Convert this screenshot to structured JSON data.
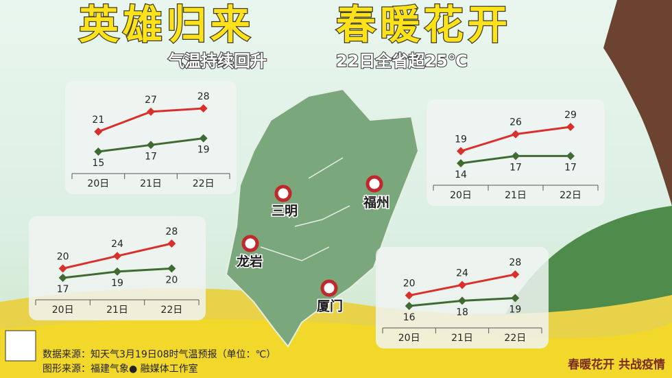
{
  "header": {
    "title_left": "英雄归来",
    "title_right": "春暖花开",
    "subtitle_left": "气温持续回升",
    "subtitle_right": "22日全省超25℃"
  },
  "cities": [
    "三明",
    "福州",
    "龙岩",
    "厦门"
  ],
  "chart_data": [
    {
      "type": "line",
      "categories": [
        "20日",
        "21日",
        "22日"
      ],
      "series": [
        {
          "color": "#d9302c",
          "values": [
            21,
            27,
            28
          ]
        },
        {
          "color": "#3f6b32",
          "values": [
            15,
            17,
            19
          ]
        }
      ]
    },
    {
      "type": "line",
      "categories": [
        "20日",
        "21日",
        "22日"
      ],
      "series": [
        {
          "color": "#d9302c",
          "values": [
            19,
            26,
            29
          ]
        },
        {
          "color": "#3f6b32",
          "values": [
            14,
            17,
            17
          ]
        }
      ]
    },
    {
      "type": "line",
      "categories": [
        "20日",
        "21日",
        "22日"
      ],
      "series": [
        {
          "color": "#d9302c",
          "values": [
            20,
            24,
            28
          ]
        },
        {
          "color": "#3f6b32",
          "values": [
            17,
            19,
            20
          ]
        }
      ]
    },
    {
      "type": "line",
      "categories": [
        "20日",
        "21日",
        "22日"
      ],
      "series": [
        {
          "color": "#d9302c",
          "values": [
            20,
            24,
            28
          ]
        },
        {
          "color": "#3f6b32",
          "values": [
            16,
            18,
            19
          ]
        }
      ]
    }
  ],
  "footer": {
    "source_data": "数据来源：知天气3月19日08时气温预报（单位：℃）",
    "source_graphic": "图形来源：福建气象● 融媒体工作室",
    "slogan": "春暖花开 共战疫情"
  }
}
